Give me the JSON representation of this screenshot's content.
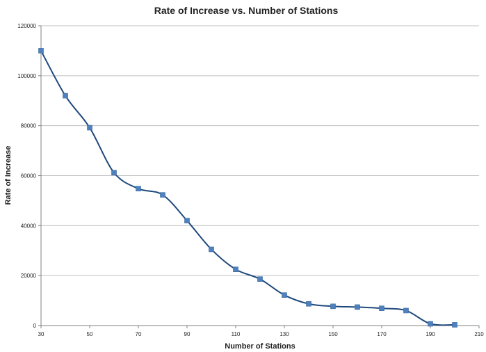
{
  "chart_data": {
    "type": "line",
    "title": "Rate of Increase vs. Number of Stations",
    "xlabel": "Number of Stations",
    "ylabel": "Rate of Increase",
    "xlim": [
      30,
      210
    ],
    "ylim": [
      0,
      120000
    ],
    "xticks": [
      30,
      50,
      70,
      90,
      110,
      130,
      150,
      170,
      190,
      210
    ],
    "yticks": [
      0,
      20000,
      40000,
      60000,
      80000,
      100000,
      120000
    ],
    "grid": "horizontal",
    "legend": "none",
    "series": [
      {
        "x": [
          30,
          40,
          50,
          60,
          70,
          80,
          90,
          100,
          110,
          120,
          130,
          140,
          150,
          160,
          170,
          180,
          190,
          200
        ],
        "y": [
          110000,
          92000,
          79200,
          61200,
          54800,
          52300,
          42000,
          30500,
          22500,
          18600,
          12200,
          8700,
          7700,
          7400,
          6900,
          6000,
          700,
          300
        ]
      }
    ],
    "colors": {
      "line": "#1f497d",
      "marker": "#4f81bd",
      "grid": "#bfbfbf",
      "axis": "#808080"
    }
  }
}
